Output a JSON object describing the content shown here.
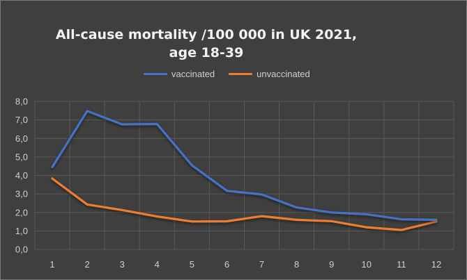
{
  "chart_data": {
    "type": "line",
    "title_line1": "All-cause mortality /100 000 in UK 2021,",
    "title_line2": "age 18-39",
    "xlabel": "",
    "ylabel": "",
    "categories": [
      "1",
      "2",
      "3",
      "4",
      "5",
      "6",
      "7",
      "8",
      "9",
      "10",
      "11",
      "12"
    ],
    "ylim": [
      0,
      8
    ],
    "yticks": [
      "0,0",
      "1,0",
      "2,0",
      "3,0",
      "4,0",
      "5,0",
      "6,0",
      "7,0",
      "8,0"
    ],
    "grid": true,
    "legend_position": "top",
    "series": [
      {
        "name": "vaccinated",
        "color": "#4472c4",
        "values": [
          4.45,
          7.48,
          6.76,
          6.78,
          4.55,
          3.17,
          2.97,
          2.27,
          2.0,
          1.9,
          1.63,
          1.6
        ]
      },
      {
        "name": "unvaccinated",
        "color": "#ed7d31",
        "values": [
          3.83,
          2.43,
          2.13,
          1.78,
          1.51,
          1.52,
          1.8,
          1.6,
          1.53,
          1.2,
          1.05,
          1.51
        ]
      }
    ]
  }
}
